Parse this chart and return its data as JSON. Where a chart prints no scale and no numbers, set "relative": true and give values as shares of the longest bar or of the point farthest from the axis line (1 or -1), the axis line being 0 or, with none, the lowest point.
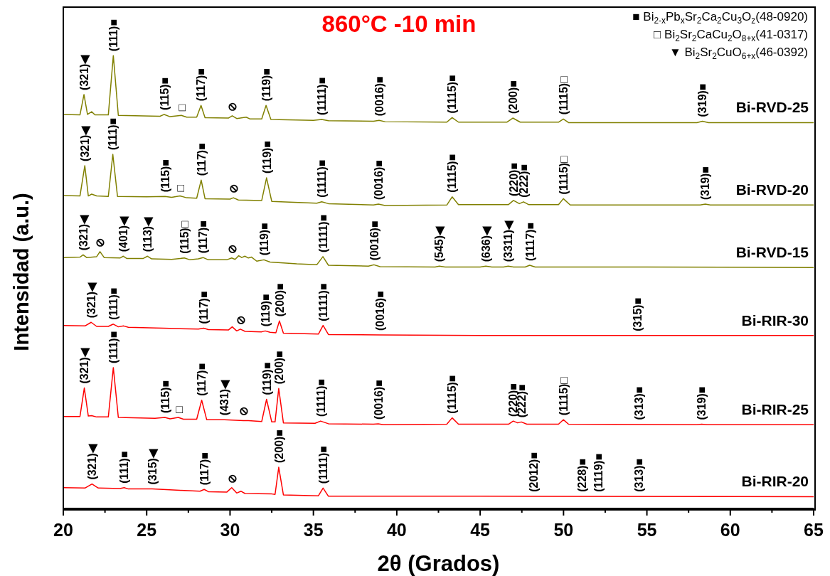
{
  "chart_data": {
    "type": "line",
    "title": "860°C -10 min",
    "xlabel": "2θ (Grados)",
    "ylabel": "Intensidad (a.u.)",
    "relative": true,
    "marker": "none",
    "xlim": [
      20,
      65
    ],
    "xticks": [
      20,
      {
        "value": 22.5,
        "label": null
      },
      25,
      {
        "value": 27.5,
        "label": null
      },
      30,
      {
        "value": 32.5,
        "label": null
      },
      35,
      {
        "value": 37.5,
        "label": null
      },
      40,
      {
        "value": 42.5,
        "label": null
      },
      45,
      {
        "value": 47.5,
        "label": null
      },
      50,
      {
        "value": 52.5,
        "label": null
      },
      55,
      {
        "value": 57.5,
        "label": null
      },
      60,
      {
        "value": 62.5,
        "label": null
      },
      65
    ],
    "series": [
      {
        "name": "Bi-RVD-25",
        "color": "#808000",
        "x": [
          20,
          21.0,
          21.24,
          21.45,
          21.7,
          21.9,
          22.7,
          23.0,
          23.3,
          25.8,
          26.05,
          26.4,
          27.08,
          27.4,
          28.0,
          28.26,
          28.5,
          29.9,
          30.13,
          30.4,
          30.97,
          31.2,
          31.9,
          32.16,
          32.45,
          35.0,
          35.5,
          35.9,
          38.6,
          38.94,
          39.3,
          43.0,
          43.32,
          43.7,
          46.6,
          46.96,
          47.4,
          49.7,
          49.99,
          50.3,
          58.0,
          58.33,
          58.7,
          65
        ],
        "values": [
          0.87,
          0.869,
          0.914,
          0.87,
          0.876,
          0.869,
          0.869,
          1.0,
          0.868,
          0.866,
          0.87,
          0.865,
          0.868,
          0.864,
          0.864,
          0.89,
          0.863,
          0.862,
          0.867,
          0.861,
          0.864,
          0.86,
          0.86,
          0.89,
          0.859,
          0.857,
          0.859,
          0.856,
          0.855,
          0.857,
          0.854,
          0.853,
          0.863,
          0.853,
          0.853,
          0.862,
          0.853,
          0.853,
          0.86,
          0.852,
          0.852,
          0.855,
          0.852,
          0.852
        ]
      },
      {
        "name": "Bi-RVD-20",
        "color": "#808000",
        "x": [
          20,
          21.0,
          21.29,
          21.5,
          21.7,
          22.0,
          22.7,
          22.97,
          23.25,
          25.0,
          26.1,
          26.5,
          27.0,
          27.4,
          28.0,
          28.27,
          28.5,
          30.0,
          30.2,
          30.5,
          31.9,
          32.19,
          32.5,
          35.2,
          35.5,
          35.9,
          38.6,
          38.9,
          39.3,
          43.0,
          43.32,
          43.7,
          46.7,
          47.0,
          47.35,
          47.6,
          47.9,
          49.7,
          49.99,
          50.4,
          58.2,
          58.5,
          58.8,
          65
        ],
        "values": [
          0.691,
          0.69,
          0.757,
          0.69,
          0.694,
          0.69,
          0.689,
          0.782,
          0.689,
          0.688,
          0.689,
          0.687,
          0.69,
          0.686,
          0.685,
          0.725,
          0.684,
          0.683,
          0.686,
          0.681,
          0.68,
          0.73,
          0.678,
          0.674,
          0.677,
          0.673,
          0.67,
          0.672,
          0.669,
          0.67,
          0.688,
          0.671,
          0.671,
          0.68,
          0.673,
          0.677,
          0.671,
          0.671,
          0.684,
          0.67,
          0.67,
          0.672,
          0.67,
          0.67
        ]
      },
      {
        "name": "Bi-RVD-15",
        "color": "#808000",
        "x": [
          20,
          21.0,
          21.19,
          21.4,
          22.0,
          22.2,
          22.45,
          23.4,
          23.6,
          23.8,
          24.8,
          25.05,
          25.3,
          26.5,
          27.26,
          27.6,
          28.1,
          28.38,
          28.7,
          29.8,
          30.1,
          30.3,
          30.52,
          30.7,
          30.89,
          31.1,
          31.29,
          31.6,
          32.03,
          32.4,
          34.0,
          35.2,
          35.57,
          35.9,
          38.3,
          38.63,
          39.0,
          42.3,
          42.55,
          42.9,
          45.0,
          45.34,
          45.7,
          46.4,
          46.68,
          47.0,
          47.7,
          47.97,
          48.3,
          55,
          65
        ],
        "values": [
          0.554,
          0.555,
          0.56,
          0.554,
          0.556,
          0.567,
          0.554,
          0.553,
          0.557,
          0.552,
          0.552,
          0.557,
          0.551,
          0.55,
          0.553,
          0.549,
          0.551,
          0.554,
          0.549,
          0.549,
          0.553,
          0.55,
          0.558,
          0.554,
          0.557,
          0.553,
          0.555,
          0.546,
          0.549,
          0.544,
          0.54,
          0.538,
          0.556,
          0.537,
          0.535,
          0.538,
          0.534,
          0.533,
          0.535,
          0.533,
          0.533,
          0.535,
          0.533,
          0.533,
          0.535,
          0.533,
          0.533,
          0.537,
          0.533,
          0.533,
          0.532
        ]
      },
      {
        "name": "Bi-RIR-30",
        "color": "#ff0000",
        "x": [
          20,
          21.3,
          21.67,
          22.0,
          22.7,
          23.0,
          23.3,
          23.62,
          23.9,
          26.0,
          28.1,
          28.42,
          28.7,
          29.9,
          30.13,
          30.4,
          30.62,
          30.9,
          31.9,
          32.11,
          32.4,
          32.75,
          32.96,
          33.2,
          35.3,
          35.58,
          35.9,
          38.97,
          45,
          65
        ],
        "values": [
          0.404,
          0.403,
          0.411,
          0.402,
          0.402,
          0.407,
          0.401,
          0.403,
          0.4,
          0.398,
          0.396,
          0.398,
          0.395,
          0.394,
          0.401,
          0.392,
          0.396,
          0.391,
          0.39,
          0.392,
          0.389,
          0.388,
          0.414,
          0.387,
          0.385,
          0.404,
          0.384,
          0.383,
          0.382,
          0.382
        ]
      },
      {
        "name": "Bi-RIR-25",
        "color": "#ff0000",
        "x": [
          20,
          21.0,
          21.26,
          21.5,
          21.7,
          22.0,
          22.7,
          23.0,
          23.3,
          25.5,
          26.09,
          26.4,
          26.9,
          27.2,
          28.0,
          28.3,
          28.6,
          29.67,
          30.8,
          31.1,
          31.9,
          32.19,
          32.5,
          32.7,
          32.92,
          33.2,
          35.1,
          35.43,
          35.9,
          38.6,
          38.89,
          39.2,
          43.0,
          43.32,
          43.7,
          46.7,
          46.98,
          47.25,
          47.47,
          47.8,
          49.7,
          49.99,
          50.3,
          58.0,
          58.28,
          58.6,
          65
        ],
        "values": [
          0.203,
          0.203,
          0.266,
          0.204,
          0.205,
          0.202,
          0.202,
          0.311,
          0.201,
          0.199,
          0.201,
          0.198,
          0.201,
          0.197,
          0.197,
          0.239,
          0.196,
          0.196,
          0.194,
          0.194,
          0.192,
          0.241,
          0.191,
          0.191,
          0.265,
          0.189,
          0.188,
          0.193,
          0.187,
          0.186,
          0.187,
          0.185,
          0.186,
          0.2,
          0.186,
          0.186,
          0.193,
          0.189,
          0.191,
          0.186,
          0.186,
          0.196,
          0.186,
          0.185,
          0.186,
          0.185,
          0.185
        ]
      },
      {
        "name": "Bi-RIR-20",
        "color": "#ff0000",
        "x": [
          20,
          21.3,
          21.72,
          22.1,
          23.4,
          23.65,
          23.9,
          25.33,
          27.0,
          28.2,
          28.45,
          28.7,
          29.8,
          30.1,
          30.4,
          30.66,
          30.9,
          32.5,
          32.7,
          32.92,
          33.2,
          35.3,
          35.58,
          35.9,
          45,
          65
        ],
        "values": [
          0.046,
          0.045,
          0.054,
          0.045,
          0.044,
          0.046,
          0.043,
          0.043,
          0.04,
          0.038,
          0.042,
          0.037,
          0.036,
          0.046,
          0.034,
          0.038,
          0.033,
          0.032,
          0.031,
          0.091,
          0.03,
          0.028,
          0.045,
          0.027,
          0.027,
          0.026
        ]
      }
    ],
    "annotations": [
      "■ Bi$_{2-x}$Pb$_{x}$Sr$_{2}$Ca$_{2}$Cu$_{3}$O$_{z}$(48-0920)",
      "□ Bi$_{2}$Sr$_{2}$CaCu$_{2}$O$_{8+x}$(41-0317)",
      "▼ Bi$_{2}$Sr$_{2}$CuO$_{6+x}$(46-0392)",
      {
        "text": "(321)◀",
        "x": 21.24,
        "y": 0.914
      },
      {
        "text": "(111)■",
        "x": 23.0,
        "y": 1.0
      },
      {
        "text": "(115)■",
        "x": 26.05,
        "y": 0.87
      },
      {
        "text": "□",
        "x": 27.08,
        "y": 0.868
      },
      {
        "text": "(117)■",
        "x": 28.26,
        "y": 0.89
      },
      {
        "text": "⊘",
        "x": 30.13,
        "y": 0.867
      },
      {
        "text": "(119)■",
        "x": 32.16,
        "y": 0.89
      },
      {
        "text": "(1111)■",
        "x": 35.5,
        "y": 0.859
      },
      {
        "text": "(0016)■",
        "x": 38.94,
        "y": 0.857
      },
      {
        "text": "(1115)■",
        "x": 43.32,
        "y": 0.863
      },
      {
        "text": "(200)■",
        "x": 46.96,
        "y": 0.862
      },
      {
        "text": "(1115)□",
        "x": 49.99,
        "y": 0.86
      },
      {
        "text": "(319)■",
        "x": 58.33,
        "y": 0.855
      },
      {
        "text": "(321)◀",
        "x": 21.29,
        "y": 0.757
      },
      {
        "text": "(111)■",
        "x": 22.97,
        "y": 0.782
      },
      {
        "text": "(115)■",
        "x": 26.1,
        "y": 0.689
      },
      {
        "text": "□",
        "x": 27.0,
        "y": 0.69
      },
      {
        "text": "(117)■",
        "x": 28.27,
        "y": 0.725
      },
      {
        "text": "⊘",
        "x": 30.2,
        "y": 0.686
      },
      {
        "text": "(119)■",
        "x": 32.19,
        "y": 0.73
      },
      {
        "text": "(1111)■",
        "x": 35.5,
        "y": 0.677
      },
      {
        "text": "(0016)■",
        "x": 38.9,
        "y": 0.672
      },
      {
        "text": "(1115)■",
        "x": 43.32,
        "y": 0.688
      },
      {
        "text": "(220)■",
        "x": 47.0,
        "y": 0.68
      },
      {
        "text": "(222)■",
        "x": 47.6,
        "y": 0.677
      },
      {
        "text": "(1115)□",
        "x": 49.99,
        "y": 0.684
      },
      {
        "text": "(319)■",
        "x": 58.5,
        "y": 0.672
      },
      {
        "text": "(321)◀",
        "x": 21.19,
        "y": 0.56
      },
      {
        "text": "⊘",
        "x": 22.2,
        "y": 0.567
      },
      {
        "text": "(401)◀",
        "x": 23.6,
        "y": 0.557
      },
      {
        "text": "(113)◀",
        "x": 25.05,
        "y": 0.557
      },
      {
        "text": "(115)□",
        "x": 27.26,
        "y": 0.553
      },
      {
        "text": "(117)■",
        "x": 28.38,
        "y": 0.554
      },
      {
        "text": "⊘",
        "x": 30.1,
        "y": 0.553
      },
      {
        "text": "(119)■",
        "x": 32.03,
        "y": 0.549
      },
      {
        "text": "(1111)■",
        "x": 35.57,
        "y": 0.556
      },
      {
        "text": "(0016)■",
        "x": 38.63,
        "y": 0.538
      },
      {
        "text": "(545)◀",
        "x": 42.55,
        "y": 0.535
      },
      {
        "text": "(636)◀",
        "x": 45.34,
        "y": 0.535
      },
      {
        "text": "(3311)◀",
        "x": 46.68,
        "y": 0.535
      },
      {
        "text": "(1117)■",
        "x": 47.97,
        "y": 0.537
      },
      {
        "text": "(321)◀",
        "x": 21.67,
        "y": 0.411
      },
      {
        "text": "(111)■",
        "x": 23.0,
        "y": 0.407
      },
      {
        "text": "(117)■",
        "x": 28.42,
        "y": 0.398
      },
      {
        "text": "⊘",
        "x": 30.62,
        "y": 0.396
      },
      {
        "text": "(119)■",
        "x": 32.11,
        "y": 0.392
      },
      {
        "text": "(200)■",
        "x": 32.96,
        "y": 0.414
      },
      {
        "text": "(1111)■",
        "x": 35.58,
        "y": 0.404
      },
      {
        "text": "(0016)■",
        "x": 38.97,
        "y": 0.383
      },
      {
        "text": "(315)■",
        "x": 54.45,
        "y": 0.382
      },
      {
        "text": "(321)◀",
        "x": 21.26,
        "y": 0.266
      },
      {
        "text": "(111)■",
        "x": 23.0,
        "y": 0.311
      },
      {
        "text": "(115)■",
        "x": 26.09,
        "y": 0.201
      },
      {
        "text": "□",
        "x": 26.9,
        "y": 0.201
      },
      {
        "text": "(117)■",
        "x": 28.3,
        "y": 0.239
      },
      {
        "text": "(431)◀",
        "x": 29.67,
        "y": 0.196
      },
      {
        "text": "⊘",
        "x": 30.8,
        "y": 0.194
      },
      {
        "text": "(119)■",
        "x": 32.19,
        "y": 0.241
      },
      {
        "text": "(200)■",
        "x": 32.92,
        "y": 0.265
      },
      {
        "text": "(1111)■",
        "x": 35.43,
        "y": 0.193
      },
      {
        "text": "(0016)■",
        "x": 38.89,
        "y": 0.187
      },
      {
        "text": "(1115)■",
        "x": 43.32,
        "y": 0.2
      },
      {
        "text": "(220)■",
        "x": 46.98,
        "y": 0.193
      },
      {
        "text": "(222)■",
        "x": 47.47,
        "y": 0.191
      },
      {
        "text": "(1115)□",
        "x": 49.99,
        "y": 0.196
      },
      {
        "text": "(313)■",
        "x": 54.5,
        "y": 0.186
      },
      {
        "text": "(319)■",
        "x": 58.28,
        "y": 0.186
      },
      {
        "text": "(321)◀",
        "x": 21.72,
        "y": 0.054
      },
      {
        "text": "(111)■",
        "x": 23.65,
        "y": 0.046
      },
      {
        "text": "(315)◀",
        "x": 25.33,
        "y": 0.043
      },
      {
        "text": "(117)■",
        "x": 28.45,
        "y": 0.042
      },
      {
        "text": "⊘",
        "x": 30.1,
        "y": 0.046
      },
      {
        "text": "(200)■",
        "x": 32.92,
        "y": 0.091
      },
      {
        "text": "(1111)■",
        "x": 35.58,
        "y": 0.045
      },
      {
        "text": "(2012)■",
        "x": 48.2,
        "y": 0.027
      },
      {
        "text": "(228)■",
        "x": 51.1,
        "y": 0.027
      },
      {
        "text": "(1119)■",
        "x": 52.1,
        "y": 0.027
      },
      {
        "text": "(313)■",
        "x": 54.5,
        "y": 0.027
      }
    ]
  }
}
